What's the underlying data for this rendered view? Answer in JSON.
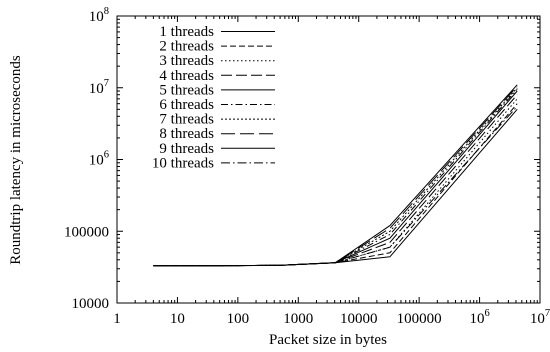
{
  "chart_data": {
    "type": "line",
    "title": "",
    "xlabel": "Packet size in bytes",
    "ylabel": "Roundtrip latency in microseconds",
    "x_scale": "log",
    "y_scale": "log",
    "xlim": [
      1,
      10000000
    ],
    "ylim": [
      10000,
      100000000
    ],
    "x_ticks": [
      {
        "value": 1,
        "label": "1"
      },
      {
        "value": 10,
        "label": "10"
      },
      {
        "value": 100,
        "label": "100"
      },
      {
        "value": 1000,
        "label": "1000"
      },
      {
        "value": 10000,
        "label": "10000"
      },
      {
        "value": 100000,
        "label": "100000"
      },
      {
        "value": 1000000,
        "base": "10",
        "exp": "6"
      },
      {
        "value": 10000000,
        "base": "10",
        "exp": "7"
      }
    ],
    "y_ticks": [
      {
        "value": 10000,
        "label": "10000"
      },
      {
        "value": 100000,
        "label": "100000"
      },
      {
        "value": 1000000,
        "base": "10",
        "exp": "6"
      },
      {
        "value": 10000000,
        "base": "10",
        "exp": "7"
      },
      {
        "value": 100000000,
        "base": "10",
        "exp": "8"
      }
    ],
    "legend_position": "top-left",
    "grid": false,
    "x": [
      4,
      32,
      512,
      4096,
      32768,
      4194304
    ],
    "series": [
      {
        "name": "1 threads",
        "dash": "",
        "values": [
          33000,
          33000,
          33500,
          36500,
          44000,
          5000000
        ]
      },
      {
        "name": "2 threads",
        "dash": "6,3",
        "values": [
          33000,
          33000,
          33500,
          36500,
          50000,
          6000000
        ]
      },
      {
        "name": "3 threads",
        "dash": "1.5,2.5",
        "values": [
          33000,
          33000,
          33500,
          36500,
          60000,
          7000000
        ]
      },
      {
        "name": "4 threads",
        "dash": "11,4",
        "values": [
          33000,
          33000,
          33500,
          36500,
          70000,
          8000000
        ]
      },
      {
        "name": "5 threads",
        "dash": "",
        "values": [
          33000,
          33000,
          33500,
          36500,
          80000,
          9000000
        ]
      },
      {
        "name": "6 threads",
        "dash": "7,3,1.5,3",
        "values": [
          33000,
          33000,
          33500,
          36500,
          90000,
          9500000
        ]
      },
      {
        "name": "7 threads",
        "dash": "2,2",
        "values": [
          33000,
          33000,
          33500,
          36500,
          100000,
          10000000
        ]
      },
      {
        "name": "8 threads",
        "dash": "14,5",
        "values": [
          33000,
          33000,
          33500,
          36500,
          110000,
          10500000
        ]
      },
      {
        "name": "9 threads",
        "dash": "",
        "values": [
          33000,
          33000,
          33500,
          36500,
          120000,
          11000000
        ]
      },
      {
        "name": "10 threads",
        "dash": "9,3,1.5,3",
        "values": [
          33000,
          33000,
          33500,
          36500,
          60000,
          5500000
        ]
      }
    ]
  }
}
